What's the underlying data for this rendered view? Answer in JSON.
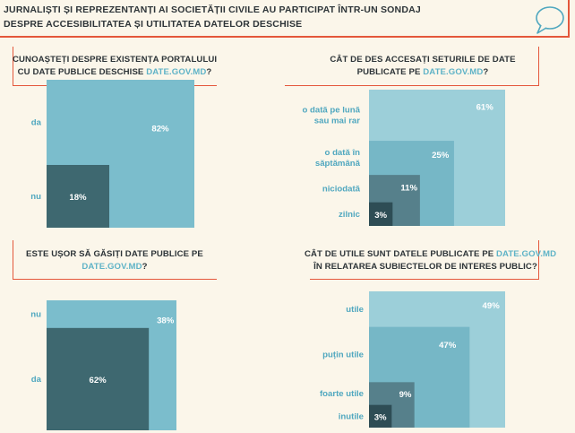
{
  "header": {
    "line1": "JURNALIȘTI ȘI REPREZENTANȚI AI SOCIETĂȚII CIVILE AU PARTICIPAT ÎNTR-UN SONDAJ",
    "line2": "DESPRE ACCESIBILITATEA ȘI UTILITATEA DATELOR DESCHISE",
    "icon": "speech-bubble-icon"
  },
  "colors": {
    "accent": "#e4573b",
    "highlight": "#5fb3c7",
    "label": "#4fa7bf",
    "shades": [
      "#9ccfd9",
      "#76b7c6",
      "#56808b",
      "#3b5e67",
      "#2a4a52"
    ]
  },
  "chart_data": [
    {
      "type": "nested-square",
      "question": {
        "line1": "CUNOAȘTEȚI DESPRE EXISTENȚA PORTALULUI",
        "line2_prefix": "CU DATE PUBLICE DESCHISE ",
        "link": "DATE.GOV.MD",
        "line2_suffix": "?"
      },
      "categories": [
        "da",
        "nu"
      ],
      "values": [
        82,
        18
      ],
      "labels": [
        "82%",
        "18%"
      ]
    },
    {
      "type": "nested-square",
      "question": {
        "line1": "CÂT DE DES ACCESAȚI SETURILE DE DATE",
        "line2_prefix": "PUBLICATE PE ",
        "link": "DATE.GOV.MD",
        "line2_suffix": "?"
      },
      "categories": [
        "o dată pe lună\nsau mai rar",
        "o dată în\nsăptămână",
        "niciodată",
        "zilnic"
      ],
      "values": [
        61,
        25,
        11,
        3
      ],
      "labels": [
        "61%",
        "25%",
        "11%",
        "3%"
      ]
    },
    {
      "type": "nested-square",
      "question": {
        "line1": "ESTE UȘOR SĂ GĂSIȚI DATE PUBLICE PE",
        "line2_prefix": "",
        "link": "DATE.GOV.MD",
        "line2_suffix": "?"
      },
      "categories": [
        "nu",
        "da"
      ],
      "values": [
        38,
        62
      ],
      "labels": [
        "38%",
        "62%"
      ]
    },
    {
      "type": "nested-square",
      "question": {
        "line1_prefix": "CÂT DE UTILE SUNT DATELE PUBLICATE PE ",
        "line1_link": "DATE.GOV.MD",
        "line2": "ÎN RELATAREA SUBIECTELOR DE INTERES PUBLIC?"
      },
      "categories": [
        "utile",
        "puțin utile",
        "foarte utile",
        "inutile"
      ],
      "values": [
        49,
        47,
        9,
        3
      ],
      "labels": [
        "49%",
        "47%",
        "9%",
        "3%"
      ]
    }
  ]
}
